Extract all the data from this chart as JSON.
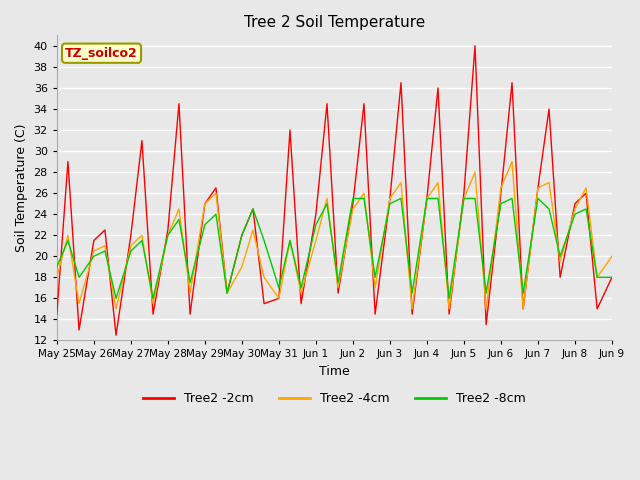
{
  "title": "Tree 2 Soil Temperature",
  "ylabel": "Soil Temperature (C)",
  "xlabel": "Time",
  "annotation": "TZ_soilco2",
  "ylim": [
    12,
    41
  ],
  "yticks": [
    12,
    14,
    16,
    18,
    20,
    22,
    24,
    26,
    28,
    30,
    32,
    34,
    36,
    38,
    40
  ],
  "bg_color": "#e8e8e8",
  "grid_color": "#ffffff",
  "line_colors": [
    "#ff0000",
    "#ffa500",
    "#00cc00"
  ],
  "line_labels": [
    "Tree2 -2cm",
    "Tree2 -4cm",
    "Tree2 -8cm"
  ],
  "x_tick_labels": [
    "May 25",
    "May 26",
    "May 27",
    "May 28",
    "May 29",
    "May 30",
    "May 31",
    "Jun 1",
    "Jun 2",
    "Jun 3",
    "Jun 4",
    "Jun 5",
    "Jun 6",
    "Jun 7",
    "Jun 8",
    "Jun 9"
  ],
  "tree2_2cm_t": [
    0.0,
    0.3,
    0.6,
    1.0,
    1.3,
    1.6,
    2.0,
    2.3,
    2.6,
    3.0,
    3.3,
    3.6,
    4.0,
    4.3,
    4.6,
    5.0,
    5.3,
    5.6,
    6.0,
    6.3,
    6.6,
    7.0,
    7.3,
    7.6,
    8.0,
    8.3,
    8.6,
    9.0,
    9.3,
    9.6,
    10.0,
    10.3,
    10.6,
    11.0,
    11.3,
    11.6,
    12.0,
    12.3,
    12.6,
    13.0,
    13.3,
    13.6,
    14.0,
    14.3,
    14.6,
    15.0
  ],
  "tree2_2cm_v": [
    14.5,
    29.0,
    13.0,
    21.5,
    22.5,
    12.5,
    22.0,
    31.0,
    14.5,
    22.5,
    34.5,
    14.5,
    25.0,
    26.5,
    16.5,
    22.0,
    24.5,
    15.5,
    16.0,
    32.0,
    15.5,
    24.0,
    34.5,
    16.5,
    25.0,
    34.5,
    14.5,
    25.5,
    36.5,
    14.5,
    25.5,
    36.0,
    14.5,
    26.0,
    40.0,
    13.5,
    26.0,
    36.5,
    15.0,
    26.5,
    34.0,
    18.0,
    25.0,
    26.0,
    15.0,
    18.0
  ],
  "tree2_4cm_t": [
    0.0,
    0.3,
    0.6,
    1.0,
    1.3,
    1.6,
    2.0,
    2.3,
    2.6,
    3.0,
    3.3,
    3.6,
    4.0,
    4.3,
    4.6,
    5.0,
    5.3,
    5.6,
    6.0,
    6.3,
    6.6,
    7.0,
    7.3,
    7.6,
    8.0,
    8.3,
    8.6,
    9.0,
    9.3,
    9.6,
    10.0,
    10.3,
    10.6,
    11.0,
    11.3,
    11.6,
    12.0,
    12.3,
    12.6,
    13.0,
    13.3,
    13.6,
    14.0,
    14.3,
    14.6,
    15.0
  ],
  "tree2_4cm_v": [
    18.0,
    22.0,
    15.5,
    20.5,
    21.0,
    15.0,
    21.0,
    22.0,
    15.5,
    22.0,
    24.5,
    16.5,
    25.0,
    26.0,
    16.5,
    19.0,
    22.5,
    18.0,
    16.0,
    21.5,
    16.5,
    21.5,
    25.5,
    17.0,
    24.5,
    26.0,
    17.0,
    25.5,
    27.0,
    15.0,
    25.5,
    27.0,
    15.0,
    25.5,
    28.0,
    15.0,
    26.5,
    29.0,
    15.0,
    26.5,
    27.0,
    19.5,
    24.5,
    26.5,
    18.0,
    20.0
  ],
  "tree2_8cm_t": [
    0.0,
    0.3,
    0.6,
    1.0,
    1.3,
    1.6,
    2.0,
    2.3,
    2.6,
    3.0,
    3.3,
    3.6,
    4.0,
    4.3,
    4.6,
    5.0,
    5.3,
    5.6,
    6.0,
    6.3,
    6.6,
    7.0,
    7.3,
    7.6,
    8.0,
    8.3,
    8.6,
    9.0,
    9.3,
    9.6,
    10.0,
    10.3,
    10.6,
    11.0,
    11.3,
    11.6,
    12.0,
    12.3,
    12.6,
    13.0,
    13.3,
    13.6,
    14.0,
    14.3,
    14.6,
    15.0
  ],
  "tree2_8cm_v": [
    19.0,
    21.5,
    18.0,
    20.0,
    20.5,
    16.0,
    20.5,
    21.5,
    16.0,
    22.0,
    23.5,
    17.5,
    23.0,
    24.0,
    16.5,
    22.0,
    24.5,
    21.5,
    17.0,
    21.5,
    17.0,
    23.0,
    25.0,
    17.5,
    25.5,
    25.5,
    18.0,
    25.0,
    25.5,
    16.5,
    25.5,
    25.5,
    16.0,
    25.5,
    25.5,
    16.5,
    25.0,
    25.5,
    16.5,
    25.5,
    24.5,
    20.0,
    24.0,
    24.5,
    18.0,
    18.0
  ]
}
